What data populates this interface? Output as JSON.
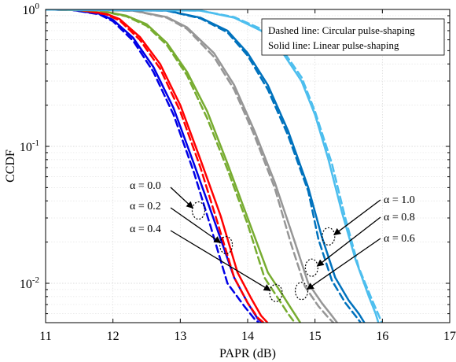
{
  "chart_data": {
    "type": "line",
    "title": "",
    "xlabel": "PAPR (dB)",
    "ylabel": "CCDF",
    "xlim": [
      11,
      17
    ],
    "ylim": [
      0.005,
      1
    ],
    "yscale": "log",
    "grid": true,
    "x_ticks": [
      "11",
      "12",
      "13",
      "14",
      "15",
      "16",
      "17"
    ],
    "y_ticks": [
      {
        "value": 1,
        "base": "10",
        "exp": "0"
      },
      {
        "value": 0.1,
        "base": "10",
        "exp": "-1"
      },
      {
        "value": 0.01,
        "base": "10",
        "exp": "-2"
      }
    ],
    "legend": {
      "position": "top-right",
      "lines": [
        "Dashed line: Circular pulse-shaping",
        "Solid line: Linear pulse-shaping"
      ]
    },
    "series": [
      {
        "alpha": "0.0",
        "style": "solid",
        "color": "#0000e6",
        "x": [
          11.0,
          11.4,
          11.8,
          12.0,
          12.3,
          12.6,
          12.9,
          13.2,
          13.5,
          13.8,
          14.0,
          14.15,
          14.25
        ],
        "y": [
          1.0,
          0.99,
          0.93,
          0.84,
          0.62,
          0.38,
          0.19,
          0.075,
          0.029,
          0.011,
          0.0072,
          0.0055,
          0.005
        ]
      },
      {
        "alpha": "0.0",
        "style": "dashed",
        "color": "#0000e6",
        "x": [
          11.0,
          11.4,
          11.8,
          12.0,
          12.3,
          12.6,
          12.9,
          13.2,
          13.45,
          13.7,
          13.95,
          14.1,
          14.2
        ],
        "y": [
          1.0,
          0.99,
          0.92,
          0.82,
          0.59,
          0.35,
          0.17,
          0.065,
          0.026,
          0.01,
          0.0068,
          0.0055,
          0.005
        ]
      },
      {
        "alpha": "0.2",
        "style": "solid",
        "color": "#ff0000",
        "x": [
          11.0,
          11.5,
          11.9,
          12.1,
          12.4,
          12.7,
          13.0,
          13.3,
          13.6,
          13.85,
          14.05,
          14.2,
          14.32
        ],
        "y": [
          1.0,
          0.99,
          0.93,
          0.85,
          0.63,
          0.4,
          0.2,
          0.08,
          0.031,
          0.012,
          0.0078,
          0.0058,
          0.005
        ]
      },
      {
        "alpha": "0.2",
        "style": "dashed",
        "color": "#ff0000",
        "x": [
          11.0,
          11.5,
          11.9,
          12.1,
          12.4,
          12.7,
          13.0,
          13.3,
          13.55,
          13.8,
          14.0,
          14.15,
          14.27
        ],
        "y": [
          1.0,
          0.99,
          0.92,
          0.83,
          0.6,
          0.37,
          0.18,
          0.07,
          0.028,
          0.011,
          0.0072,
          0.0056,
          0.005
        ]
      },
      {
        "alpha": "0.4",
        "style": "solid",
        "color": "#77ac30",
        "x": [
          11.0,
          11.8,
          12.2,
          12.5,
          12.8,
          13.1,
          13.4,
          13.7,
          14.0,
          14.3,
          14.5,
          14.65,
          14.8
        ],
        "y": [
          1.0,
          0.98,
          0.9,
          0.78,
          0.57,
          0.35,
          0.18,
          0.075,
          0.03,
          0.012,
          0.0085,
          0.0065,
          0.005
        ]
      },
      {
        "alpha": "0.4",
        "style": "dashed",
        "color": "#77ac30",
        "x": [
          11.0,
          11.8,
          12.2,
          12.5,
          12.8,
          13.1,
          13.4,
          13.7,
          14.0,
          14.25,
          14.45,
          14.6,
          14.72
        ],
        "y": [
          1.0,
          0.98,
          0.89,
          0.76,
          0.55,
          0.33,
          0.16,
          0.068,
          0.027,
          0.011,
          0.0078,
          0.006,
          0.005
        ]
      },
      {
        "alpha": "0.6",
        "style": "solid",
        "color": "#969696",
        "x": [
          11.0,
          12.3,
          12.8,
          13.1,
          13.5,
          13.8,
          14.1,
          14.4,
          14.7,
          14.9,
          15.1,
          15.25,
          15.35
        ],
        "y": [
          1.0,
          0.98,
          0.88,
          0.74,
          0.48,
          0.28,
          0.13,
          0.055,
          0.02,
          0.01,
          0.0072,
          0.0058,
          0.005
        ]
      },
      {
        "alpha": "0.6",
        "style": "dashed",
        "color": "#969696",
        "x": [
          11.0,
          12.3,
          12.8,
          13.1,
          13.5,
          13.8,
          14.1,
          14.4,
          14.65,
          14.85,
          15.05,
          15.2,
          15.3
        ],
        "y": [
          1.0,
          0.98,
          0.87,
          0.72,
          0.45,
          0.26,
          0.12,
          0.05,
          0.019,
          0.0095,
          0.0068,
          0.0056,
          0.005
        ]
      },
      {
        "alpha": "0.8",
        "style": "solid",
        "color": "#0072bd",
        "x": [
          11.0,
          12.8,
          13.3,
          13.7,
          14.0,
          14.3,
          14.6,
          14.9,
          15.1,
          15.3,
          15.5,
          15.65,
          15.75
        ],
        "y": [
          1.0,
          0.98,
          0.87,
          0.7,
          0.48,
          0.28,
          0.13,
          0.05,
          0.022,
          0.011,
          0.0075,
          0.006,
          0.005
        ]
      },
      {
        "alpha": "0.8",
        "style": "dashed",
        "color": "#0072bd",
        "x": [
          11.0,
          12.8,
          13.3,
          13.7,
          14.0,
          14.3,
          14.6,
          14.9,
          15.05,
          15.25,
          15.45,
          15.6,
          15.7
        ],
        "y": [
          1.0,
          0.98,
          0.86,
          0.68,
          0.46,
          0.26,
          0.12,
          0.047,
          0.021,
          0.0105,
          0.0072,
          0.0058,
          0.005
        ]
      },
      {
        "alpha": "1.0",
        "style": "solid",
        "color": "#4dbeee",
        "x": [
          11.0,
          13.3,
          13.8,
          14.2,
          14.5,
          14.8,
          15.0,
          15.2,
          15.4,
          15.6,
          15.8,
          15.9,
          15.95
        ],
        "y": [
          1.0,
          0.98,
          0.87,
          0.7,
          0.5,
          0.3,
          0.17,
          0.08,
          0.033,
          0.015,
          0.008,
          0.006,
          0.005
        ]
      },
      {
        "alpha": "1.0",
        "style": "dashed",
        "color": "#4dbeee",
        "x": [
          11.0,
          13.3,
          13.8,
          14.2,
          14.5,
          14.8,
          15.0,
          15.25,
          15.45,
          15.65,
          15.85,
          15.95,
          16.0
        ],
        "y": [
          1.0,
          0.98,
          0.88,
          0.72,
          0.52,
          0.32,
          0.18,
          0.075,
          0.03,
          0.013,
          0.0075,
          0.0058,
          0.005
        ]
      }
    ],
    "annotations": [
      {
        "label": "α = 0.0",
        "point": [
          13.27,
          0.034
        ],
        "anchor": "left"
      },
      {
        "label": "α = 0.2",
        "point": [
          13.68,
          0.019
        ],
        "anchor": "left"
      },
      {
        "label": "α = 0.4",
        "point": [
          14.42,
          0.0085
        ],
        "anchor": "left"
      },
      {
        "label": "α = 1.0",
        "point": [
          15.2,
          0.022
        ],
        "anchor": "right"
      },
      {
        "label": "α = 0.8",
        "point": [
          14.95,
          0.013
        ],
        "anchor": "right"
      },
      {
        "label": "α = 0.6",
        "point": [
          14.8,
          0.0088
        ],
        "anchor": "right"
      }
    ]
  }
}
